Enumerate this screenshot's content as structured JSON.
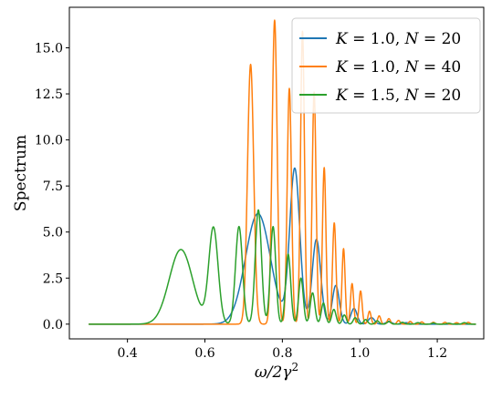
{
  "chart_data": {
    "type": "line",
    "title": "",
    "xlabel": "ω/2γ²",
    "xlabel_parts": {
      "main": "ω/2γ",
      "sup": "2"
    },
    "ylabel": "Spectrum",
    "xlim": [
      0.25,
      1.32
    ],
    "ylim": [
      -0.8,
      17.2
    ],
    "xticks": [
      0.4,
      0.6,
      0.8,
      1.0,
      1.2
    ],
    "xtick_labels": [
      "0.4",
      "0.6",
      "0.8",
      "1.0",
      "1.2"
    ],
    "yticks": [
      0.0,
      2.5,
      5.0,
      7.5,
      10.0,
      12.5,
      15.0
    ],
    "ytick_labels": [
      "0.0",
      "2.5",
      "5.0",
      "7.5",
      "10.0",
      "12.5",
      "15.0"
    ],
    "grid": false,
    "legend_position": "top-right",
    "series": [
      {
        "name": "K = 1.0, N = 20",
        "label_parts": {
          "k": "1.0",
          "n": "20"
        },
        "color": "#1f77b4",
        "peaks": [
          [
            0.737,
            6.0,
            0.032
          ],
          [
            0.832,
            8.4,
            0.013
          ],
          [
            0.888,
            4.6,
            0.011
          ],
          [
            0.938,
            2.1,
            0.009
          ],
          [
            0.985,
            0.85,
            0.008
          ],
          [
            1.03,
            0.35,
            0.008
          ],
          [
            1.075,
            0.15,
            0.007
          ],
          [
            1.12,
            0.08,
            0.007
          ]
        ]
      },
      {
        "name": "K = 1.0, N = 40",
        "label_parts": {
          "k": "1.0",
          "n": "40"
        },
        "color": "#ff7f0e",
        "peaks": [
          [
            0.718,
            14.1,
            0.008
          ],
          [
            0.78,
            16.5,
            0.0065
          ],
          [
            0.818,
            12.8,
            0.0055
          ],
          [
            0.852,
            15.9,
            0.005
          ],
          [
            0.882,
            12.6,
            0.005
          ],
          [
            0.908,
            8.5,
            0.0045
          ],
          [
            0.934,
            5.5,
            0.0045
          ],
          [
            0.958,
            4.1,
            0.004
          ],
          [
            0.98,
            2.2,
            0.004
          ],
          [
            1.002,
            1.8,
            0.004
          ],
          [
            1.025,
            0.7,
            0.004
          ],
          [
            1.05,
            0.45,
            0.004
          ],
          [
            1.075,
            0.3,
            0.004
          ],
          [
            1.1,
            0.2,
            0.004
          ],
          [
            1.13,
            0.15,
            0.004
          ],
          [
            1.16,
            0.12,
            0.004
          ],
          [
            1.19,
            0.1,
            0.004
          ],
          [
            1.22,
            0.1,
            0.004
          ],
          [
            1.25,
            0.08,
            0.004
          ],
          [
            1.28,
            0.1,
            0.004
          ]
        ]
      },
      {
        "name": "K = 1.5, N = 20",
        "label_parts": {
          "k": "1.5",
          "n": "20"
        },
        "color": "#2ca02c",
        "peaks": [
          [
            0.538,
            4.05,
            0.03
          ],
          [
            0.622,
            5.2,
            0.012
          ],
          [
            0.688,
            5.3,
            0.009
          ],
          [
            0.738,
            6.2,
            0.008
          ],
          [
            0.776,
            5.3,
            0.007
          ],
          [
            0.815,
            3.8,
            0.0065
          ],
          [
            0.848,
            2.5,
            0.006
          ],
          [
            0.878,
            1.7,
            0.006
          ],
          [
            0.906,
            1.15,
            0.0055
          ],
          [
            0.933,
            0.8,
            0.0055
          ],
          [
            0.96,
            0.5,
            0.005
          ],
          [
            0.988,
            0.35,
            0.005
          ],
          [
            1.015,
            0.25,
            0.005
          ],
          [
            1.045,
            0.18,
            0.005
          ],
          [
            1.075,
            0.13,
            0.005
          ],
          [
            1.11,
            0.1,
            0.005
          ],
          [
            1.15,
            0.08,
            0.005
          ],
          [
            1.19,
            0.06,
            0.005
          ],
          [
            1.23,
            0.05,
            0.005
          ],
          [
            1.27,
            0.08,
            0.005
          ]
        ]
      }
    ],
    "x_start": 0.3,
    "x_end": 1.3
  }
}
